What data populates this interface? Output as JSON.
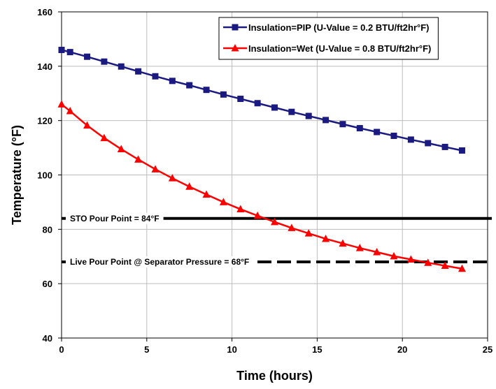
{
  "chart_data": {
    "type": "line",
    "title": "",
    "xlabel": "Time (hours)",
    "ylabel": "Temperature (°F)",
    "xlim": [
      0,
      25
    ],
    "ylim": [
      40,
      160
    ],
    "xticks": [
      0,
      5,
      10,
      15,
      20,
      25
    ],
    "yticks": [
      40,
      60,
      80,
      100,
      120,
      140,
      160
    ],
    "grid": true,
    "legend_position": "top-right",
    "series": [
      {
        "name": "Insulation=PIP (U-Value = 0.2 BTU/ft2hr°F)",
        "color": "#1a1a80",
        "marker": "square",
        "x": [
          0,
          0.5,
          1.5,
          2.5,
          3.5,
          4.5,
          5.5,
          6.5,
          7.5,
          8.5,
          9.5,
          10.5,
          11.5,
          12.5,
          13.5,
          14.5,
          15.5,
          16.5,
          17.5,
          18.5,
          19.5,
          20.5,
          21.5,
          22.5,
          23.5
        ],
        "y": [
          146,
          145.2,
          143.5,
          141.7,
          139.9,
          138.1,
          136.3,
          134.6,
          133,
          131.3,
          129.6,
          128,
          126.4,
          124.8,
          123.2,
          121.7,
          120.2,
          118.7,
          117.2,
          115.8,
          114.4,
          113,
          111.7,
          110.3,
          109
        ]
      },
      {
        "name": "Insulation=Wet (U-Value = 0.8 BTU/ft2hr°F)",
        "color": "#ff0000",
        "marker": "triangle",
        "x": [
          0,
          0.5,
          1.5,
          2.5,
          3.5,
          4.5,
          5.5,
          6.5,
          7.5,
          8.5,
          9.5,
          10.5,
          11.5,
          12.5,
          13.5,
          14.5,
          15.5,
          16.5,
          17.5,
          18.5,
          19.5,
          20.5,
          21.5,
          22.5,
          23.5
        ],
        "y": [
          126,
          123.5,
          118.2,
          113.6,
          109.5,
          105.7,
          102.1,
          98.8,
          95.7,
          92.8,
          90,
          87.4,
          85,
          82.7,
          80.5,
          78.5,
          76.5,
          74.8,
          73.1,
          71.6,
          70.1,
          68.9,
          67.7,
          66.6,
          65.5
        ]
      }
    ],
    "reference_lines": [
      {
        "label": "STO Pour Point = 84°F",
        "y": 84,
        "style": "solid"
      },
      {
        "label": "Live Pour Point @ Separator Pressure = 68°F",
        "y": 68,
        "style": "dashed"
      }
    ]
  }
}
